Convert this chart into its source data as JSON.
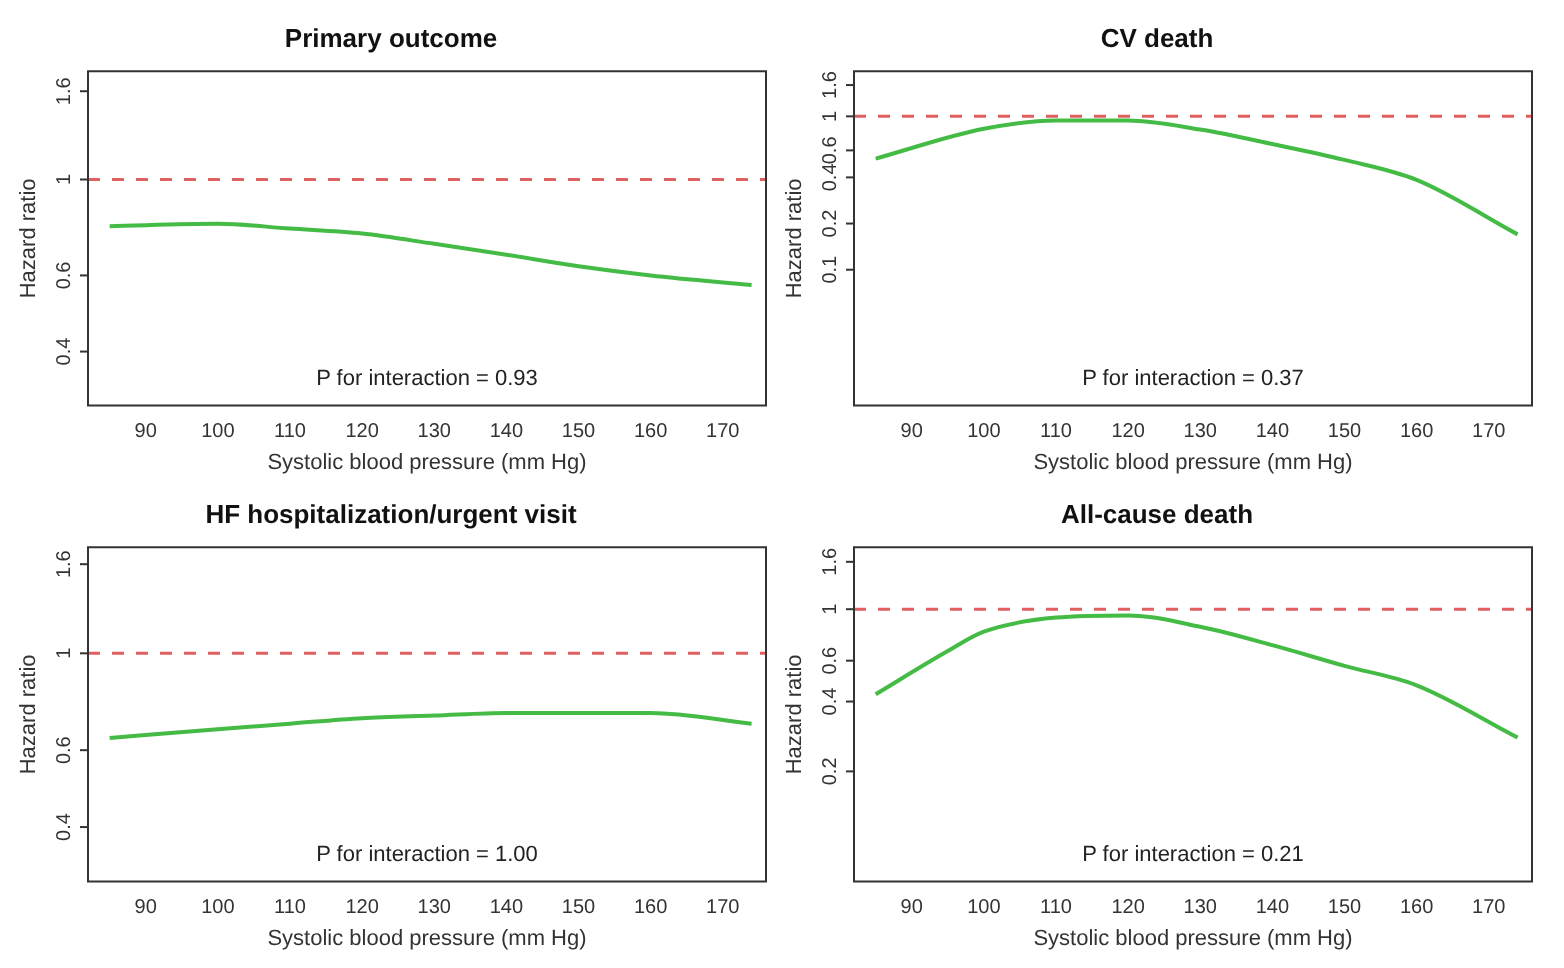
{
  "chart_data": [
    {
      "type": "line",
      "title": "Primary outcome",
      "xlabel": "Systolic blood pressure (mm Hg)",
      "ylabel": "Hazard ratio",
      "log": "y",
      "marker": "none",
      "xlim": [
        82,
        176
      ],
      "ylim": [
        0.3,
        1.78
      ],
      "xticks": [
        90,
        100,
        110,
        120,
        130,
        140,
        150,
        160,
        170
      ],
      "yticks": [
        0.4,
        0.6,
        1,
        1.6
      ],
      "series": [
        {
          "color": "#44bb44",
          "x": [
            85,
            100,
            110,
            120,
            130,
            140,
            150,
            160,
            174
          ],
          "values": [
            0.78,
            0.79,
            0.77,
            0.75,
            0.71,
            0.67,
            0.63,
            0.6,
            0.57
          ]
        }
      ],
      "ref_lines": [
        {
          "axis": "y",
          "value": 1,
          "color": "#e06060",
          "line_style": "dashed"
        }
      ],
      "annotations": [
        "P for interaction = 0.93"
      ]
    },
    {
      "type": "line",
      "title": "CV death",
      "xlabel": "Systolic blood pressure (mm Hg)",
      "ylabel": "Hazard ratio",
      "log": "y",
      "marker": "none",
      "xlim": [
        82,
        176
      ],
      "ylim": [
        0.013,
        1.97
      ],
      "xticks": [
        90,
        100,
        110,
        120,
        130,
        140,
        150,
        160,
        170
      ],
      "yticks": [
        0.1,
        0.2,
        0.4,
        0.6,
        1,
        1.6
      ],
      "series": [
        {
          "color": "#44bb44",
          "x": [
            85,
            100,
            110,
            120,
            130,
            140,
            150,
            160,
            174
          ],
          "values": [
            0.53,
            0.83,
            0.94,
            0.94,
            0.82,
            0.66,
            0.52,
            0.385,
            0.17
          ]
        }
      ],
      "ref_lines": [
        {
          "axis": "y",
          "value": 1,
          "color": "#e06060",
          "line_style": "dashed"
        }
      ],
      "annotations": [
        "P for interaction = 0.37"
      ]
    },
    {
      "type": "line",
      "title": "HF hospitalization/urgent visit",
      "xlabel": "Systolic blood pressure (mm Hg)",
      "ylabel": "Hazard ratio",
      "log": "y",
      "marker": "none",
      "xlim": [
        82,
        176
      ],
      "ylim": [
        0.3,
        1.75
      ],
      "xticks": [
        90,
        100,
        110,
        120,
        130,
        140,
        150,
        160,
        170
      ],
      "yticks": [
        0.4,
        0.6,
        1,
        1.6
      ],
      "series": [
        {
          "color": "#44bb44",
          "x": [
            85,
            100,
            110,
            120,
            130,
            140,
            150,
            160,
            174
          ],
          "values": [
            0.64,
            0.67,
            0.69,
            0.71,
            0.72,
            0.73,
            0.73,
            0.73,
            0.69
          ]
        }
      ],
      "ref_lines": [
        {
          "axis": "y",
          "value": 1,
          "color": "#e06060",
          "line_style": "dashed"
        }
      ],
      "annotations": [
        "P for interaction = 1.00"
      ]
    },
    {
      "type": "line",
      "title": "All-cause death",
      "xlabel": "Systolic blood pressure (mm Hg)",
      "ylabel": "Hazard ratio",
      "log": "y",
      "marker": "none",
      "xlim": [
        82,
        176
      ],
      "ylim": [
        0.067,
        1.85
      ],
      "xticks": [
        90,
        100,
        110,
        120,
        130,
        140,
        150,
        160,
        170
      ],
      "yticks": [
        0.2,
        0.4,
        0.6,
        1,
        1.6
      ],
      "series": [
        {
          "color": "#44bb44",
          "x": [
            85,
            95,
            100,
            110,
            120,
            130,
            140,
            150,
            160,
            174
          ],
          "values": [
            0.43,
            0.66,
            0.8,
            0.92,
            0.94,
            0.84,
            0.7,
            0.57,
            0.47,
            0.28
          ]
        }
      ],
      "ref_lines": [
        {
          "axis": "y",
          "value": 1,
          "color": "#e06060",
          "line_style": "dashed"
        }
      ],
      "annotations": [
        "P for interaction = 0.21"
      ]
    }
  ]
}
